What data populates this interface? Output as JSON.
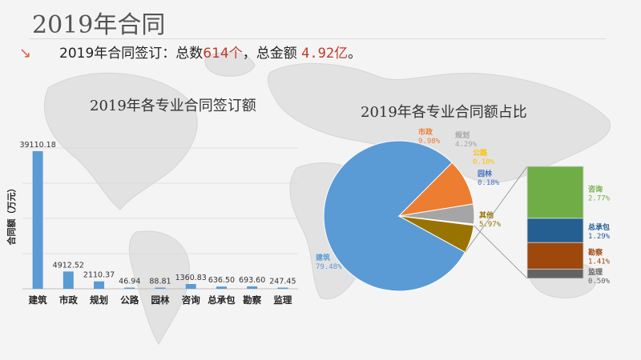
{
  "page": {
    "title": "2019年合同",
    "summary": {
      "arrow": "↘",
      "prefix": "2019年合同签订：总数",
      "count": "614个",
      "middle": "，总金额 ",
      "amount": "4.92亿",
      "suffix": "。"
    },
    "colors": {
      "accent": "#c0392b",
      "arrow": "#e25a3a"
    }
  },
  "chart_data": [
    {
      "type": "bar",
      "title": "2019年各专业合同签订额",
      "ylabel": "合同额（万元）",
      "xlabel": "",
      "categories": [
        "建筑",
        "市政",
        "规划",
        "公路",
        "园林",
        "咨询",
        "总承包",
        "勘察",
        "监理"
      ],
      "values": [
        39110.18,
        4912.52,
        2110.37,
        46.94,
        88.81,
        1360.83,
        636.5,
        693.6,
        247.45
      ],
      "value_labels": [
        "39110.18",
        "4912.52",
        "2110.37",
        "46.94",
        "88.81",
        "1360.83",
        "636.50",
        "693.60",
        "247.45"
      ],
      "ylim": [
        0,
        40000
      ],
      "grid": true,
      "color": "#5b9bd5"
    },
    {
      "type": "pie",
      "title": "2019年各专业合同额占比",
      "slices": [
        {
          "label": "建筑",
          "value": 79.48,
          "pct_label": "79.48%",
          "color": "#5b9bd5"
        },
        {
          "label": "市政",
          "value": 9.98,
          "pct_label": "9.98%",
          "color": "#ed7d31"
        },
        {
          "label": "规划",
          "value": 4.29,
          "pct_label": "4.29%",
          "color": "#a5a5a5"
        },
        {
          "label": "公路",
          "value": 0.1,
          "pct_label": "0.10%",
          "color": "#ffc000"
        },
        {
          "label": "园林",
          "value": 0.18,
          "pct_label": "0.18%",
          "color": "#4472c4"
        },
        {
          "label": "其他",
          "value": 5.97,
          "pct_label": "5.97%",
          "color": "#997300"
        }
      ],
      "breakdown": [
        {
          "label": "咨询",
          "value": 2.77,
          "pct_label": "2.77%",
          "color": "#70ad47"
        },
        {
          "label": "总承包",
          "value": 1.29,
          "pct_label": "1.29%",
          "color": "#255e91"
        },
        {
          "label": "勘察",
          "value": 1.41,
          "pct_label": "1.41%",
          "color": "#9e480e"
        },
        {
          "label": "监理",
          "value": 0.5,
          "pct_label": "0.50%",
          "color": "#636363"
        }
      ]
    }
  ]
}
